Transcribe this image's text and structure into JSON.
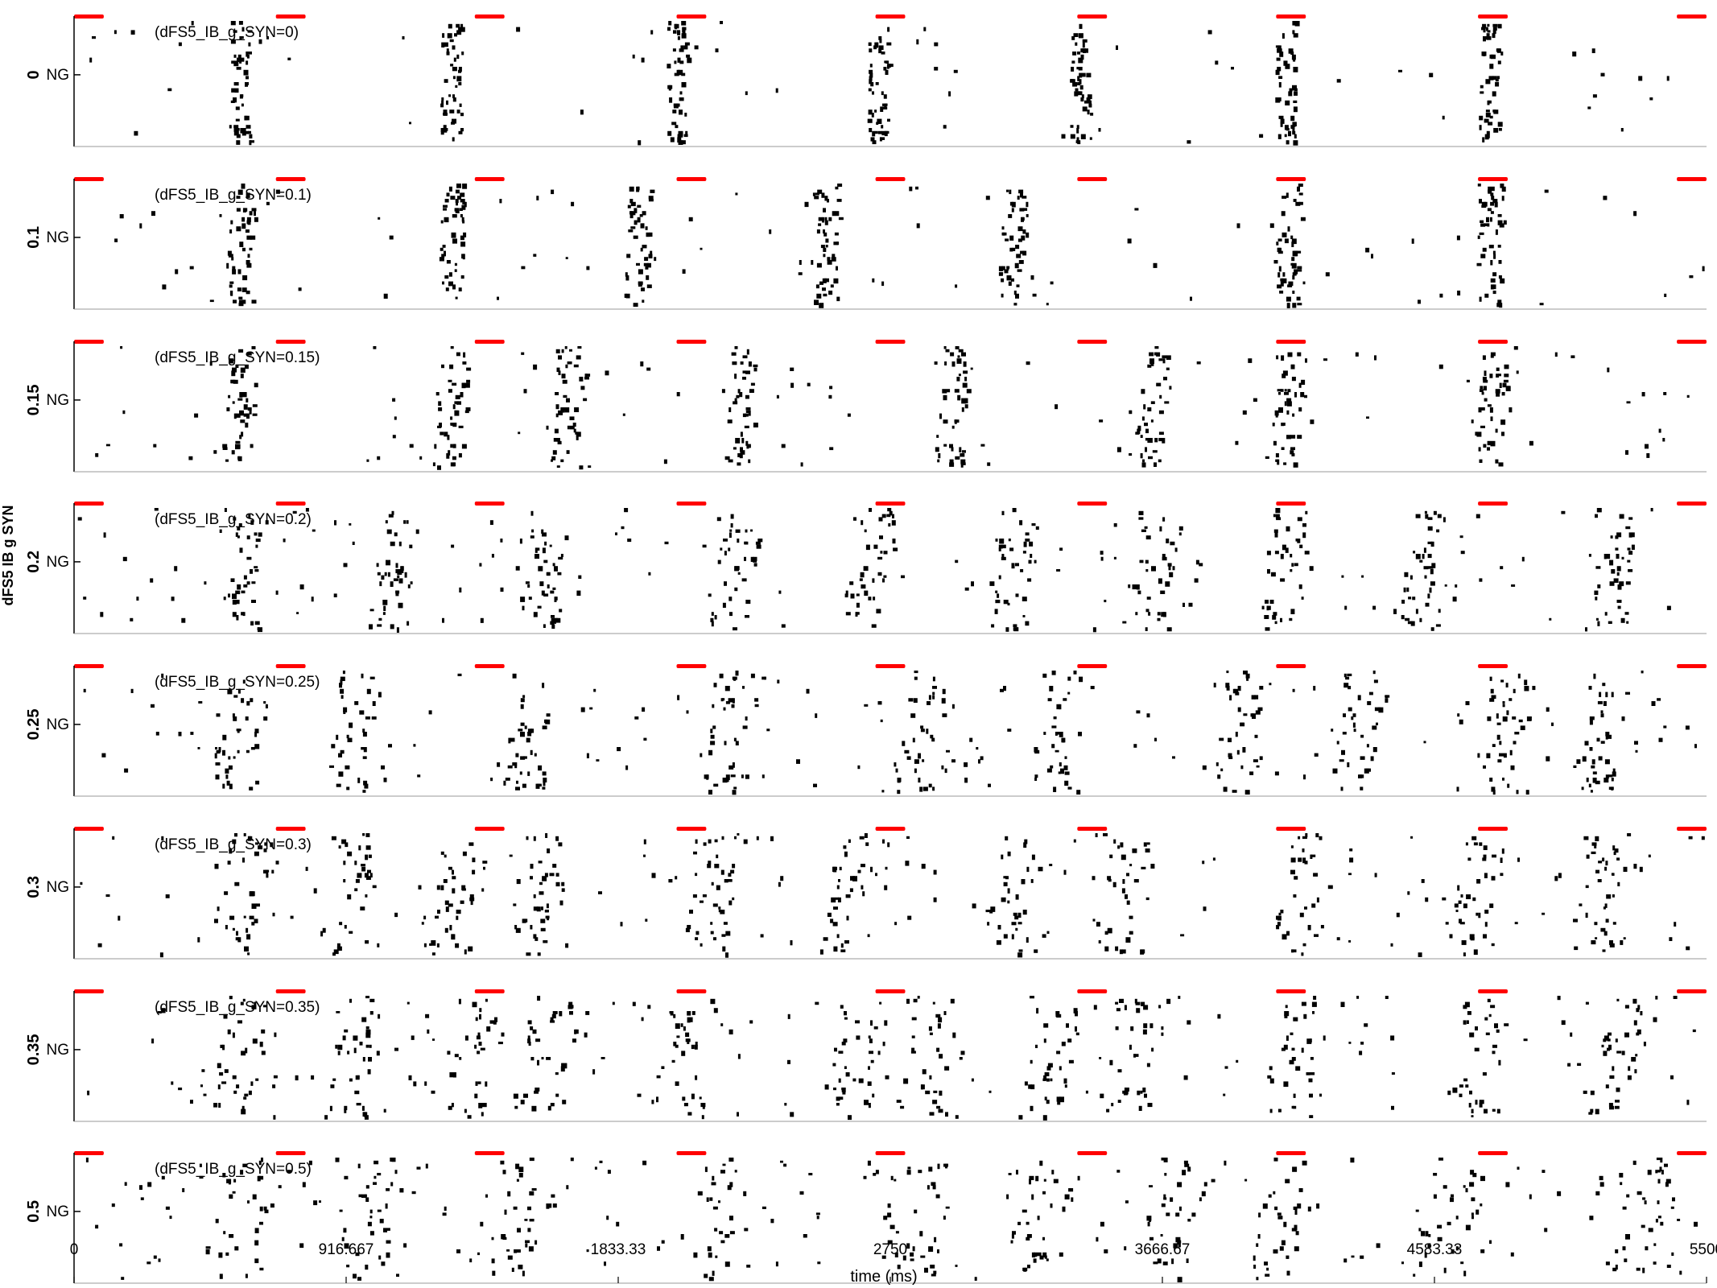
{
  "chart_data": {
    "type": "scatter",
    "subtype": "raster",
    "ylabel": "dFS5 IB g SYN",
    "xlabel": "time (ms)",
    "xlim": [
      0,
      5500
    ],
    "xticks": [
      "0",
      "916.667",
      "1833.33",
      "2750",
      "3666.67",
      "4583.33",
      "5500"
    ],
    "population_label": "NG",
    "stimulus_color": "#ff0000",
    "spike_color": "#000000",
    "stimulus_intervals_ms": [
      [
        0,
        100
      ],
      [
        680,
        780
      ],
      [
        1350,
        1450
      ],
      [
        2030,
        2130
      ],
      [
        2700,
        2800
      ],
      [
        3380,
        3480
      ],
      [
        4050,
        4150
      ],
      [
        4730,
        4830
      ],
      [
        5400,
        5500
      ]
    ],
    "panels": [
      {
        "label": "0",
        "annotation": "(dFS5_IB_g_SYN=0)",
        "bursts_ms": [
          560,
          1270,
          2030,
          2710,
          3390,
          4080,
          4770
        ],
        "sync": 0.95
      },
      {
        "label": "0.1",
        "annotation": "(dFS5_IB_g_SYN=0.1)",
        "bursts_ms": [
          560,
          1270,
          1900,
          2530,
          3160,
          4090,
          4770
        ],
        "sync": 0.85
      },
      {
        "label": "0.15",
        "annotation": "(dFS5_IB_g_SYN=0.15)",
        "bursts_ms": [
          560,
          1270,
          1660,
          2250,
          2960,
          3630,
          4090,
          4770
        ],
        "sync": 0.75
      },
      {
        "label": "0.2",
        "annotation": "(dFS5_IB_g_SYN=0.2)",
        "bursts_ms": [
          560,
          1080,
          1580,
          2220,
          2680,
          3160,
          3640,
          4080,
          4530,
          5180
        ],
        "sync": 0.55
      },
      {
        "label": "0.25",
        "annotation": "(dFS5_IB_g_SYN=0.25)",
        "bursts_ms": [
          560,
          940,
          1530,
          2200,
          2840,
          3320,
          3930,
          4330,
          4810,
          5140
        ],
        "sync": 0.5
      },
      {
        "label": "0.3",
        "annotation": "(dFS5_IB_g_SYN=0.3)",
        "bursts_ms": [
          560,
          920,
          1280,
          1580,
          2150,
          2590,
          3170,
          3530,
          4140,
          4720,
          5140
        ],
        "sync": 0.45
      },
      {
        "label": "0.35",
        "annotation": "(dFS5_IB_g_SYN=0.35)",
        "bursts_ms": [
          560,
          920,
          1340,
          1580,
          2060,
          2640,
          2870,
          3300,
          3560,
          4110,
          4730,
          5200
        ],
        "sync": 0.35
      },
      {
        "label": "0.5",
        "annotation": "(dFS5_IB_g_SYN=0.5)",
        "bursts_ms": [
          560,
          1000,
          1500,
          2150,
          2840,
          3260,
          3690,
          4060,
          4630,
          5270
        ],
        "sync": 0.3
      }
    ]
  }
}
